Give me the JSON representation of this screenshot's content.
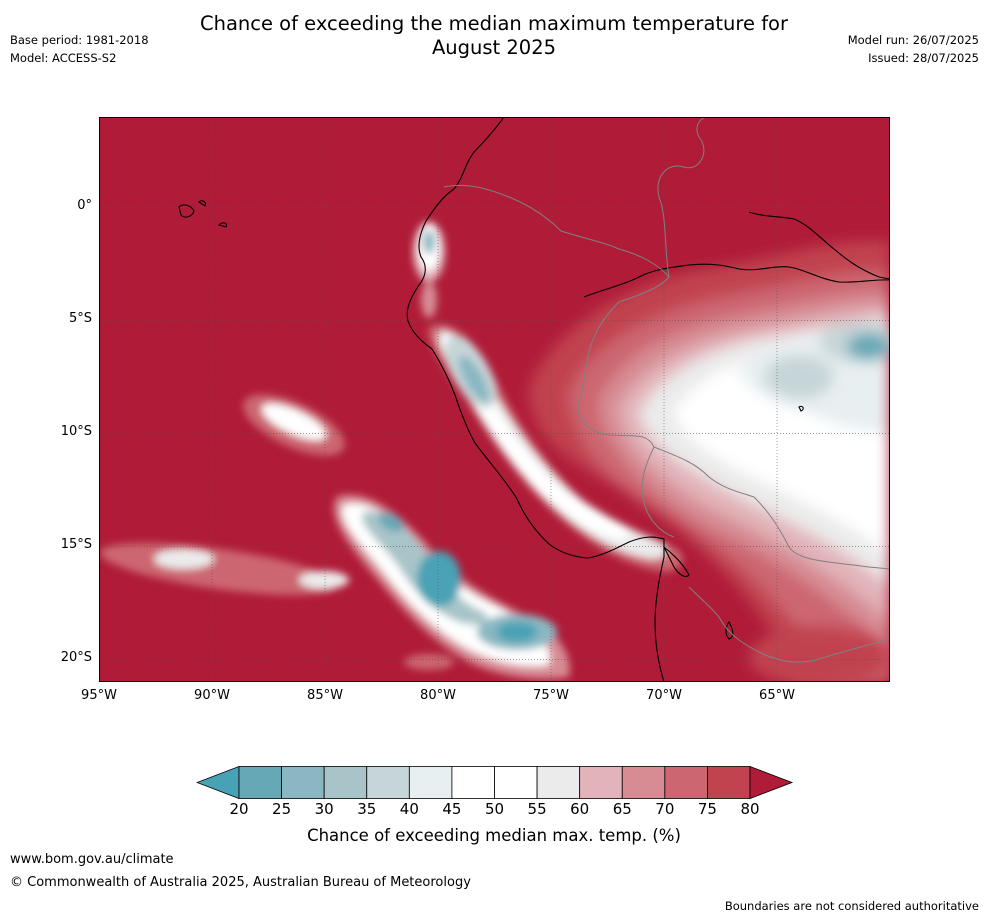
{
  "title_line1": "Chance of exceeding the median maximum temperature for",
  "title_line2": "August 2025",
  "meta": {
    "base_period": "Base period: 1981-2018",
    "model": "Model: ACCESS-S2",
    "model_run": "Model run: 26/07/2025",
    "issued": "Issued: 28/07/2025"
  },
  "map": {
    "lon_range": [
      -95,
      -60
    ],
    "lat_range": [
      -21,
      4
    ],
    "lat_ticks": [
      {
        "value": 0,
        "label": "0°"
      },
      {
        "value": -5,
        "label": "5°S"
      },
      {
        "value": -10,
        "label": "10°S"
      },
      {
        "value": -15,
        "label": "15°S"
      },
      {
        "value": -20,
        "label": "20°S"
      }
    ],
    "lon_ticks": [
      {
        "value": -95,
        "label": "95°W"
      },
      {
        "value": -90,
        "label": "90°W"
      },
      {
        "value": -85,
        "label": "85°W"
      },
      {
        "value": -80,
        "label": "80°W"
      },
      {
        "value": -75,
        "label": "75°W"
      },
      {
        "value": -70,
        "label": "70°W"
      },
      {
        "value": -65,
        "label": "65°W"
      }
    ],
    "colors": {
      "c80": "#b01c38",
      "c75": "#c1434f",
      "c70": "#cc6670",
      "c65": "#d78c94",
      "c60": "#e2b4ba",
      "c55": "#ebebeb",
      "c50": "#ffffff",
      "c45": "#e8eff1",
      "c40": "#c6d5d8",
      "c35": "#a8c4c9",
      "c30": "#8ab7c2",
      "c25": "#67a8b6",
      "c20": "#48a2b5",
      "coast": "#000000",
      "border": "#808080",
      "grid": "#555555"
    }
  },
  "colorbar": {
    "label": "Chance of exceeding median max. temp. (%)",
    "ticks": [
      "20",
      "25",
      "30",
      "35",
      "40",
      "45",
      "50",
      "55",
      "60",
      "65",
      "70",
      "75",
      "80"
    ],
    "colors": [
      "#67a8b6",
      "#8ab7c2",
      "#a8c4c9",
      "#c6d5d8",
      "#e8eff1",
      "#ffffff",
      "#ffffff",
      "#ebebeb",
      "#e2b4ba",
      "#d78c94",
      "#cc6670",
      "#c1434f"
    ],
    "under_color": "#48a2b5",
    "over_color": "#b01c38"
  },
  "footer": {
    "url": "www.bom.gov.au/climate",
    "copyright": "© Commonwealth of Australia 2025, Australian Bureau of Meteorology",
    "note": "Boundaries are not considered authoritative"
  }
}
